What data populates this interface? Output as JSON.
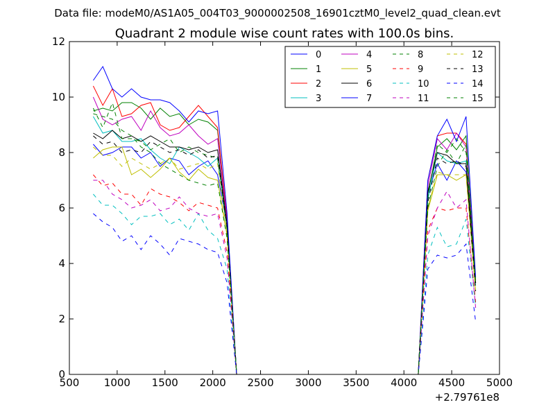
{
  "header": {
    "data_file": "Data file: modeM0/AS1A05_004T03_9000002508_16901cztM0_level2_quad_clean.evt"
  },
  "chart_data": {
    "type": "line",
    "title": "Quadrant 2 module wise count rates with 100.0s bins.",
    "xlabel": "",
    "ylabel": "",
    "x_offset_label": "+2.79761e8",
    "xlim": [
      500,
      5000
    ],
    "ylim": [
      0,
      12
    ],
    "xticks": [
      "500",
      "1000",
      "1500",
      "2000",
      "2500",
      "3000",
      "3500",
      "4000",
      "4500",
      "5000"
    ],
    "yticks": [
      "0",
      "2",
      "4",
      "6",
      "8",
      "10",
      "12"
    ],
    "legend_position": "top-right",
    "x": [
      750,
      850,
      950,
      1050,
      1150,
      1250,
      1350,
      1450,
      1550,
      1650,
      1750,
      1850,
      1950,
      2050,
      2150,
      2250,
      2350,
      2450,
      2550,
      2650,
      2750,
      2850,
      2950,
      3050,
      3150,
      3250,
      3350,
      3450,
      3550,
      3650,
      3750,
      3850,
      3950,
      4050,
      4150,
      4250,
      4350,
      4450,
      4550,
      4650,
      4750
    ],
    "series": [
      {
        "name": "0",
        "color": "#0000ff",
        "dash": "solid",
        "values": [
          8.3,
          7.9,
          8.0,
          8.2,
          8.2,
          7.8,
          8.0,
          7.5,
          7.8,
          7.7,
          7.2,
          7.5,
          7.7,
          7.2,
          5.4,
          0,
          0,
          0,
          0,
          0,
          0,
          0,
          0,
          0,
          0,
          0,
          0,
          0,
          0,
          0,
          0,
          0,
          0,
          0,
          0,
          6.5,
          7.6,
          7.0,
          7.7,
          7.3,
          3.3
        ]
      },
      {
        "name": "1",
        "color": "#008000",
        "dash": "solid",
        "values": [
          9.5,
          9.6,
          9.5,
          9.8,
          9.8,
          9.6,
          9.2,
          9.6,
          9.3,
          9.4,
          9.0,
          9.2,
          9.1,
          8.8,
          5.5,
          0,
          0,
          0,
          0,
          0,
          0,
          0,
          0,
          0,
          0,
          0,
          0,
          0,
          0,
          0,
          0,
          0,
          0,
          0,
          0,
          6.5,
          8.2,
          8.5,
          8.1,
          8.6,
          3.4
        ]
      },
      {
        "name": "2",
        "color": "#ff0000",
        "dash": "solid",
        "values": [
          10.4,
          9.7,
          10.3,
          9.3,
          9.4,
          9.7,
          9.8,
          9.0,
          8.8,
          8.9,
          9.3,
          9.7,
          9.3,
          8.9,
          5.6,
          0,
          0,
          0,
          0,
          0,
          0,
          0,
          0,
          0,
          0,
          0,
          0,
          0,
          0,
          0,
          0,
          0,
          0,
          0,
          0,
          7.0,
          8.6,
          8.7,
          8.7,
          8.3,
          3.3
        ]
      },
      {
        "name": "3",
        "color": "#00bfbf",
        "dash": "solid",
        "values": [
          9.3,
          8.7,
          8.8,
          8.4,
          8.4,
          8.5,
          8.1,
          7.8,
          7.6,
          8.2,
          8.0,
          7.8,
          7.5,
          7.8,
          5.3,
          0,
          0,
          0,
          0,
          0,
          0,
          0,
          0,
          0,
          0,
          0,
          0,
          0,
          0,
          0,
          0,
          0,
          0,
          0,
          0,
          6.3,
          8.0,
          7.7,
          7.6,
          7.7,
          3.2
        ]
      },
      {
        "name": "4",
        "color": "#bf00bf",
        "dash": "solid",
        "values": [
          10.0,
          9.2,
          9.0,
          9.2,
          9.3,
          8.8,
          9.5,
          8.9,
          8.6,
          8.7,
          9.0,
          8.6,
          8.3,
          8.5,
          5.5,
          0,
          0,
          0,
          0,
          0,
          0,
          0,
          0,
          0,
          0,
          0,
          0,
          0,
          0,
          0,
          0,
          0,
          0,
          0,
          0,
          6.8,
          8.5,
          8.1,
          8.7,
          8.2,
          3.3
        ]
      },
      {
        "name": "5",
        "color": "#bfbf00",
        "dash": "solid",
        "values": [
          7.8,
          8.1,
          8.2,
          8.2,
          7.2,
          7.4,
          7.1,
          7.4,
          7.8,
          7.3,
          7.0,
          7.4,
          7.1,
          7.0,
          5.0,
          0,
          0,
          0,
          0,
          0,
          0,
          0,
          0,
          0,
          0,
          0,
          0,
          0,
          0,
          0,
          0,
          0,
          0,
          0,
          0,
          5.9,
          7.2,
          7.2,
          7.0,
          7.2,
          3.0
        ]
      },
      {
        "name": "6",
        "color": "#000000",
        "dash": "solid",
        "values": [
          8.7,
          8.5,
          8.8,
          8.5,
          8.6,
          8.4,
          8.6,
          8.4,
          8.2,
          8.2,
          8.1,
          8.2,
          8.0,
          8.1,
          5.4,
          0,
          0,
          0,
          0,
          0,
          0,
          0,
          0,
          0,
          0,
          0,
          0,
          0,
          0,
          0,
          0,
          0,
          0,
          0,
          0,
          6.6,
          8.0,
          7.9,
          7.6,
          7.6,
          3.3
        ]
      },
      {
        "name": "7",
        "color": "#0000ff",
        "dash": "solid",
        "values": [
          10.6,
          11.1,
          10.3,
          10.0,
          10.3,
          10.0,
          9.9,
          9.9,
          9.8,
          9.5,
          9.1,
          9.5,
          9.4,
          9.5,
          5.8,
          0,
          0,
          0,
          0,
          0,
          0,
          0,
          0,
          0,
          0,
          0,
          0,
          0,
          0,
          0,
          0,
          0,
          0,
          0,
          0,
          7.0,
          8.6,
          9.2,
          8.4,
          9.3,
          3.5
        ]
      },
      {
        "name": "8",
        "color": "#008000",
        "dash": "dashed",
        "values": [
          9.6,
          8.9,
          9.8,
          8.5,
          8.5,
          8.4,
          8.1,
          8.3,
          8.5,
          8.0,
          8.2,
          8.0,
          7.9,
          7.8,
          5.2,
          0,
          0,
          0,
          0,
          0,
          0,
          0,
          0,
          0,
          0,
          0,
          0,
          0,
          0,
          0,
          0,
          0,
          0,
          0,
          0,
          6.4,
          8.3,
          8.0,
          8.5,
          8.0,
          3.3
        ]
      },
      {
        "name": "9",
        "color": "#ff0000",
        "dash": "dashed",
        "values": [
          7.2,
          6.8,
          6.9,
          6.5,
          6.5,
          6.1,
          6.7,
          6.5,
          6.4,
          6.2,
          5.9,
          6.2,
          6.1,
          6.0,
          4.4,
          0,
          0,
          0,
          0,
          0,
          0,
          0,
          0,
          0,
          0,
          0,
          0,
          0,
          0,
          0,
          0,
          0,
          0,
          0,
          0,
          5.2,
          6.0,
          5.9,
          6.0,
          6.0,
          2.6
        ]
      },
      {
        "name": "10",
        "color": "#00bfbf",
        "dash": "dashed",
        "values": [
          6.5,
          6.1,
          6.1,
          5.8,
          5.4,
          5.7,
          5.7,
          5.8,
          5.4,
          5.6,
          5.2,
          5.8,
          5.2,
          4.9,
          3.8,
          0,
          0,
          0,
          0,
          0,
          0,
          0,
          0,
          0,
          0,
          0,
          0,
          0,
          0,
          0,
          0,
          0,
          0,
          0,
          0,
          4.3,
          5.3,
          4.6,
          4.7,
          5.6,
          2.4
        ]
      },
      {
        "name": "11",
        "color": "#bf00bf",
        "dash": "dashed",
        "values": [
          7.0,
          7.0,
          6.5,
          6.3,
          6.0,
          6.1,
          6.3,
          5.9,
          6.0,
          6.4,
          6.0,
          5.8,
          5.7,
          5.8,
          4.2,
          0,
          0,
          0,
          0,
          0,
          0,
          0,
          0,
          0,
          0,
          0,
          0,
          0,
          0,
          0,
          0,
          0,
          0,
          0,
          0,
          5.0,
          6.0,
          6.6,
          6.0,
          6.3,
          2.4
        ]
      },
      {
        "name": "12",
        "color": "#bfbf00",
        "dash": "dashed",
        "values": [
          8.2,
          7.9,
          7.9,
          7.5,
          7.8,
          7.6,
          7.4,
          7.6,
          7.8,
          7.4,
          7.5,
          7.6,
          7.4,
          7.6,
          5.0,
          0,
          0,
          0,
          0,
          0,
          0,
          0,
          0,
          0,
          0,
          0,
          0,
          0,
          0,
          0,
          0,
          0,
          0,
          0,
          0,
          6.0,
          7.3,
          7.2,
          7.2,
          7.2,
          3.0
        ]
      },
      {
        "name": "13",
        "color": "#000000",
        "dash": "dashed",
        "values": [
          8.6,
          8.3,
          8.4,
          8.0,
          8.1,
          8.0,
          8.4,
          8.2,
          8.0,
          8.1,
          7.9,
          8.1,
          7.8,
          7.9,
          5.3,
          0,
          0,
          0,
          0,
          0,
          0,
          0,
          0,
          0,
          0,
          0,
          0,
          0,
          0,
          0,
          0,
          0,
          0,
          0,
          0,
          6.2,
          7.8,
          7.6,
          7.7,
          7.5,
          3.0
        ]
      },
      {
        "name": "14",
        "color": "#0000ff",
        "dash": "dashed",
        "values": [
          5.8,
          5.5,
          5.3,
          4.8,
          5.0,
          4.5,
          5.0,
          4.7,
          4.3,
          4.9,
          4.8,
          4.7,
          4.5,
          4.4,
          3.3,
          0,
          0,
          0,
          0,
          0,
          0,
          0,
          0,
          0,
          0,
          0,
          0,
          0,
          0,
          0,
          0,
          0,
          0,
          0,
          0,
          3.8,
          4.3,
          4.2,
          4.3,
          4.7,
          1.9
        ]
      },
      {
        "name": "15",
        "color": "#008000",
        "dash": "dashed",
        "values": [
          9.4,
          9.3,
          9.2,
          8.8,
          8.6,
          8.2,
          8.0,
          7.6,
          7.4,
          7.2,
          7.0,
          6.9,
          6.8,
          6.9,
          4.9,
          0,
          0,
          0,
          0,
          0,
          0,
          0,
          0,
          0,
          0,
          0,
          0,
          0,
          0,
          0,
          0,
          0,
          0,
          0,
          0,
          6.0,
          7.5,
          8.1,
          7.6,
          8.3,
          3.2
        ]
      }
    ]
  }
}
